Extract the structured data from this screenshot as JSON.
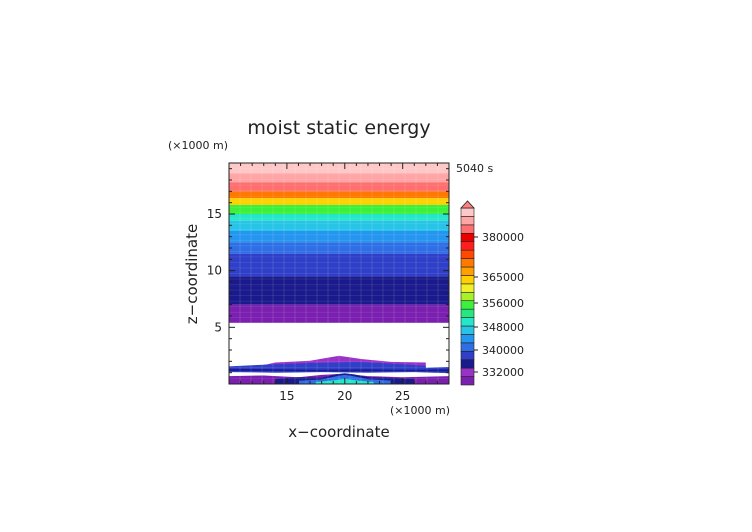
{
  "chart_data": {
    "type": "heatmap",
    "title": "moist static energy",
    "xlabel": "x−coordinate",
    "ylabel": "z−coordinate",
    "x_unit": "(×1000 m)",
    "y_unit": "(×1000 m)",
    "time_label": "5040 s",
    "xlim": [
      10,
      29
    ],
    "ylim": [
      0,
      19.5
    ],
    "x_ticks": [
      15,
      20,
      25
    ],
    "y_ticks": [
      5,
      10,
      15
    ],
    "colorbar": {
      "tick_labels": [
        "380000",
        "365000",
        "356000",
        "348000",
        "340000",
        "332000"
      ],
      "colors": [
        "#7a1fb0",
        "#9a32c8",
        "#1a1a8c",
        "#2f3fc8",
        "#2f6fe6",
        "#2596f0",
        "#28c4e8",
        "#25e6c8",
        "#25e680",
        "#3cf03c",
        "#a8f028",
        "#f0f028",
        "#ffd000",
        "#ffa000",
        "#ff7800",
        "#ff4800",
        "#ff1e1e",
        "#e80000",
        "#ff6f6f",
        "#ffa5a5",
        "#ffc8c8"
      ]
    },
    "layers": [
      {
        "z_top": 19.5,
        "z_bottom": 18.6,
        "value": 386000
      },
      {
        "z_top": 18.6,
        "z_bottom": 17.8,
        "value": 384000
      },
      {
        "z_top": 17.8,
        "z_bottom": 17.0,
        "value": 380000
      },
      {
        "z_top": 17.0,
        "z_bottom": 16.4,
        "value": 370000
      },
      {
        "z_top": 16.4,
        "z_bottom": 15.8,
        "value": 365000
      },
      {
        "z_top": 15.8,
        "z_bottom": 15.0,
        "value": 356000
      },
      {
        "z_top": 15.0,
        "z_bottom": 14.4,
        "value": 350000
      },
      {
        "z_top": 14.4,
        "z_bottom": 13.5,
        "value": 348000
      },
      {
        "z_top": 13.5,
        "z_bottom": 12.5,
        "value": 344000
      },
      {
        "z_top": 12.5,
        "z_bottom": 11.5,
        "value": 342000
      },
      {
        "z_top": 11.5,
        "z_bottom": 9.5,
        "value": 340000
      },
      {
        "z_top": 9.5,
        "z_bottom": 8.6,
        "value": 338000
      },
      {
        "z_top": 8.6,
        "z_bottom": 7.0,
        "value": 336000
      },
      {
        "z_top": 7.0,
        "z_bottom": 5.4,
        "value": 332000
      }
    ]
  }
}
